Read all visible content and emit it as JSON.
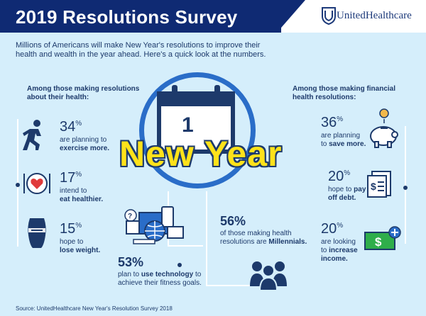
{
  "header": {
    "title": "2019 Resolutions Survey",
    "logo_text": "UnitedHealthcare",
    "logo_icon": "unitedhealthcare-logo-icon",
    "colors": {
      "banner": "#0f2a73",
      "background": "#d5eefb",
      "accent": "#ffe21a",
      "ring": "#2a6dc8"
    }
  },
  "intro": "Millions of Americans will make New Year's resolutions to improve their health and wealth in the year ahead. Here's a quick look at the numbers.",
  "health": {
    "heading_line1": "Among those making resolutions",
    "heading_line2": "about their health:",
    "items": [
      {
        "pct": "34",
        "unit": "%",
        "line1": "are planning to",
        "line2": "exercise more.",
        "icon": "runner-icon"
      },
      {
        "pct": "17",
        "unit": "%",
        "line1": "intend to",
        "line2": "eat healthier.",
        "icon": "plate-heart-icon"
      },
      {
        "pct": "15",
        "unit": "%",
        "line1": "hope to",
        "line2": "lose weight.",
        "icon": "body-scale-icon"
      }
    ]
  },
  "calendar": {
    "day": "1",
    "label": "New Year"
  },
  "technology": {
    "pct": "53",
    "unit": "%",
    "line1": "plan to",
    "bold1": "use technology",
    "line1b": "to",
    "line2": "achieve their fitness goals.",
    "icon": "devices-icon"
  },
  "millennials": {
    "pct": "56",
    "unit": "%",
    "line1": "of those making health",
    "line2": "resolutions are",
    "bold": "Millennials.",
    "icon": "people-group-icon"
  },
  "financial": {
    "heading_line1": "Among those making financial",
    "heading_line2": "health resolutions:",
    "items": [
      {
        "pct": "36",
        "unit": "%",
        "line1": "are planning",
        "line2": "to",
        "bold": "save more.",
        "icon": "piggy-bank-icon"
      },
      {
        "pct": "20",
        "unit": "%",
        "line1": "hope to",
        "bold_a": "pay",
        "bold_b": "off debt.",
        "icon": "bill-icon"
      },
      {
        "pct": "20",
        "unit": "%",
        "line1": "are looking",
        "line2": "to",
        "bold_a": "increase",
        "bold_b": "income.",
        "icon": "money-plus-icon"
      }
    ]
  },
  "source": "Source: UnitedHealthcare New Year's Resolution Survey 2018"
}
